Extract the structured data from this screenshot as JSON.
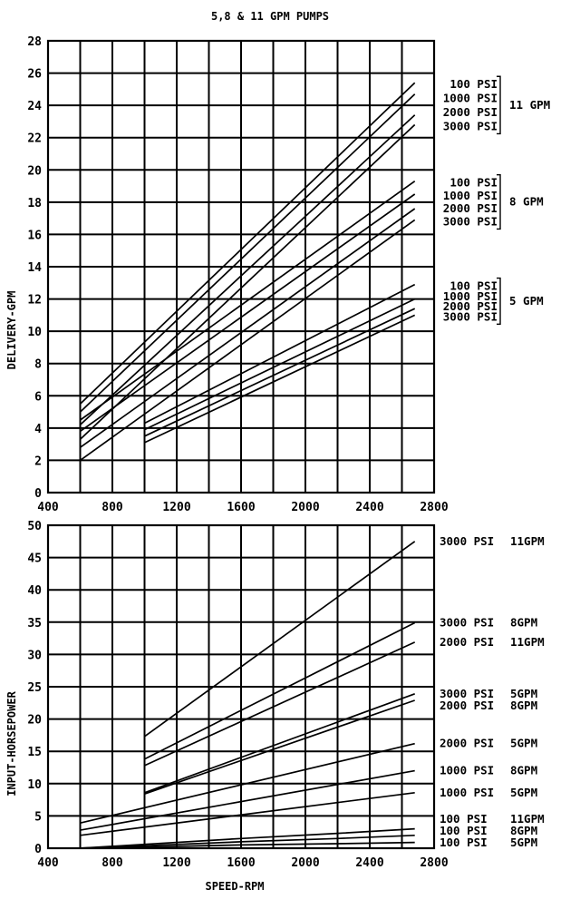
{
  "title": "5,8 & 11 GPM PUMPS",
  "chart_data": [
    {
      "type": "line",
      "ylabel": "DELIVERY-GPM",
      "xlim": [
        400,
        2800
      ],
      "ylim": [
        0,
        28
      ],
      "x_ticks": [
        400,
        800,
        1200,
        1600,
        2000,
        2400,
        2800
      ],
      "y_ticks": [
        0,
        2,
        4,
        6,
        8,
        10,
        12,
        14,
        16,
        18,
        20,
        22,
        24,
        26,
        28
      ],
      "grid": true,
      "groups": [
        {
          "name": "11 GPM",
          "labels": [
            "100 PSI",
            "1000 PSI",
            "2000 PSI",
            "3000 PSI"
          ]
        },
        {
          "name": "8 GPM",
          "labels": [
            "100 PSI",
            "1000 PSI",
            "2000 PSI",
            "3000 PSI"
          ]
        },
        {
          "name": "5 GPM",
          "labels": [
            "100 PSI",
            "1000 PSI",
            "2000 PSI",
            "3000 PSI"
          ]
        }
      ],
      "series": [
        {
          "x": [
            600,
            2680
          ],
          "y": [
            5.5,
            25.4
          ]
        },
        {
          "x": [
            600,
            2680
          ],
          "y": [
            5.0,
            24.7
          ]
        },
        {
          "x": [
            600,
            2680
          ],
          "y": [
            4.2,
            23.4
          ]
        },
        {
          "x": [
            600,
            2680
          ],
          "y": [
            3.3,
            22.8
          ]
        },
        {
          "x": [
            600,
            2680
          ],
          "y": [
            4.5,
            19.3
          ]
        },
        {
          "x": [
            600,
            2680
          ],
          "y": [
            3.8,
            18.5
          ]
        },
        {
          "x": [
            600,
            2680
          ],
          "y": [
            2.8,
            17.6
          ]
        },
        {
          "x": [
            600,
            2680
          ],
          "y": [
            2.0,
            16.9
          ]
        },
        {
          "x": [
            1000,
            2680
          ],
          "y": [
            4.3,
            12.9
          ]
        },
        {
          "x": [
            1000,
            2680
          ],
          "y": [
            3.9,
            12.0
          ]
        },
        {
          "x": [
            1000,
            2680
          ],
          "y": [
            3.5,
            11.4
          ]
        },
        {
          "x": [
            1000,
            2680
          ],
          "y": [
            3.1,
            11.0
          ]
        }
      ]
    },
    {
      "type": "line",
      "xlabel": "SPEED-RPM",
      "ylabel": "INPUT-HORSEPOWER",
      "xlim": [
        400,
        2800
      ],
      "ylim": [
        0,
        50
      ],
      "x_ticks": [
        400,
        800,
        1200,
        1600,
        2000,
        2400,
        2800
      ],
      "y_ticks": [
        0,
        5,
        10,
        15,
        20,
        25,
        30,
        35,
        40,
        45,
        50
      ],
      "grid": true,
      "series": [
        {
          "name": "3000 PSI 11GPM",
          "x": [
            1000,
            2680
          ],
          "y": [
            17.3,
            47.5
          ]
        },
        {
          "name": "3000 PSI 8GPM",
          "x": [
            1000,
            2680
          ],
          "y": [
            13.8,
            34.9
          ]
        },
        {
          "name": "2000 PSI 11GPM",
          "x": [
            1000,
            2680
          ],
          "y": [
            12.8,
            31.9
          ]
        },
        {
          "name": "3000 PSI 5GPM",
          "x": [
            1000,
            2680
          ],
          "y": [
            8.6,
            23.9
          ]
        },
        {
          "name": "2000 PSI 8GPM",
          "x": [
            1000,
            2680
          ],
          "y": [
            8.4,
            22.9
          ]
        },
        {
          "name": "2000 PSI 5GPM",
          "x": [
            600,
            2680
          ],
          "y": [
            3.9,
            16.2
          ]
        },
        {
          "name": "1000 PSI 8GPM",
          "x": [
            600,
            2680
          ],
          "y": [
            2.8,
            12.0
          ]
        },
        {
          "name": "1000 PSI 5GPM",
          "x": [
            600,
            2680
          ],
          "y": [
            2.0,
            8.6
          ]
        },
        {
          "name": "100 PSI 11GPM",
          "x": [
            600,
            1000,
            1600,
            2200,
            2680
          ],
          "y": [
            0.0,
            0.6,
            1.5,
            2.3,
            3.0
          ]
        },
        {
          "name": "100 PSI 8GPM",
          "x": [
            600,
            1000,
            1600,
            2200,
            2680
          ],
          "y": [
            0.0,
            0.4,
            1.0,
            1.5,
            2.0
          ]
        },
        {
          "name": "100 PSI 5GPM",
          "x": [
            600,
            1000,
            1600,
            2200,
            2680
          ],
          "y": [
            0.0,
            0.2,
            0.5,
            0.7,
            0.9
          ]
        }
      ]
    }
  ]
}
